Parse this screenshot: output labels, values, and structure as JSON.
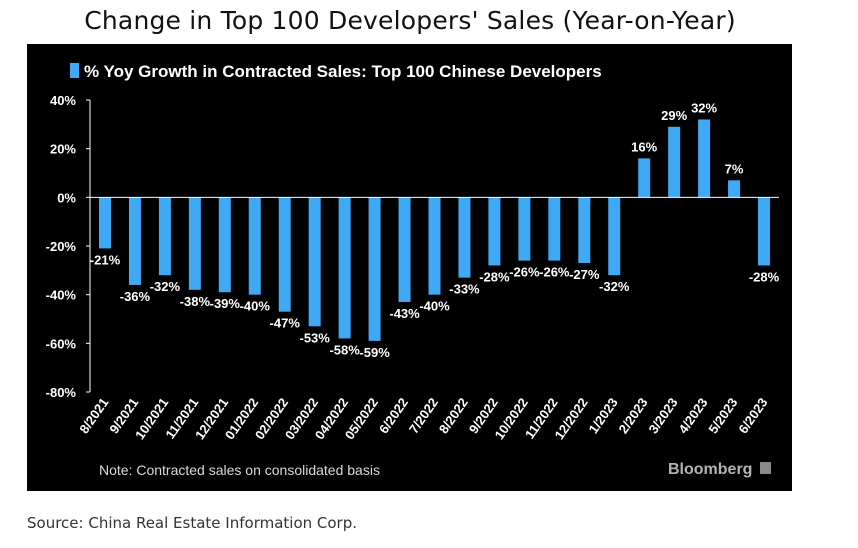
{
  "page": {
    "title": "Change in Top 100 Developers' Sales (Year-on-Year)",
    "source": "Source: China Real Estate Information Corp."
  },
  "chart_data": {
    "type": "bar",
    "title": "",
    "legend": {
      "label": "% Yoy Growth in Contracted Sales: Top 100 Chinese Developers",
      "position": "top-left"
    },
    "note": "Note: Contracted sales on consolidated basis",
    "brand": "Bloomberg",
    "xlabel": "",
    "ylabel": "",
    "ylim": [
      -80,
      40
    ],
    "yticks": [
      40,
      20,
      0,
      -20,
      -40,
      -60,
      -80
    ],
    "ytick_labels": [
      "40%",
      "20%",
      "0%",
      "-20%",
      "-40%",
      "-60%",
      "-80%"
    ],
    "grid": false,
    "categories": [
      "8/2021",
      "9/2021",
      "10/2021",
      "11/2021",
      "12/2021",
      "01/2022",
      "02/2022",
      "03/2022",
      "04/2022",
      "05/2022",
      "6/2022",
      "7/2022",
      "8/2022",
      "9/2022",
      "10/2022",
      "11/2022",
      "12/2022",
      "1/2023",
      "2/2023",
      "3/2023",
      "4/2023",
      "5/2023",
      "6/2023"
    ],
    "values": [
      -21,
      -36,
      -32,
      -38,
      -39,
      -40,
      -47,
      -53,
      -58,
      -59,
      -43,
      -40,
      -33,
      -28,
      -26,
      -26,
      -27,
      -32,
      16,
      29,
      32,
      7,
      -28
    ],
    "data_labels": [
      "-21%",
      "-36%",
      "-32%",
      "-38%",
      "-39%",
      "-40%",
      "-47%",
      "-53%",
      "-58%",
      "-59%",
      "-43%",
      "-40%",
      "-33%",
      "-28%",
      "-26%",
      "-26%",
      "-27%",
      "-32%",
      "16%",
      "29%",
      "32%",
      "7%",
      "-28%"
    ],
    "colors": {
      "bar": "#3fa9f5",
      "background": "#000000",
      "text": "#ffffff",
      "note": "#d9d9d9",
      "brand": "#b3b3b3"
    }
  }
}
